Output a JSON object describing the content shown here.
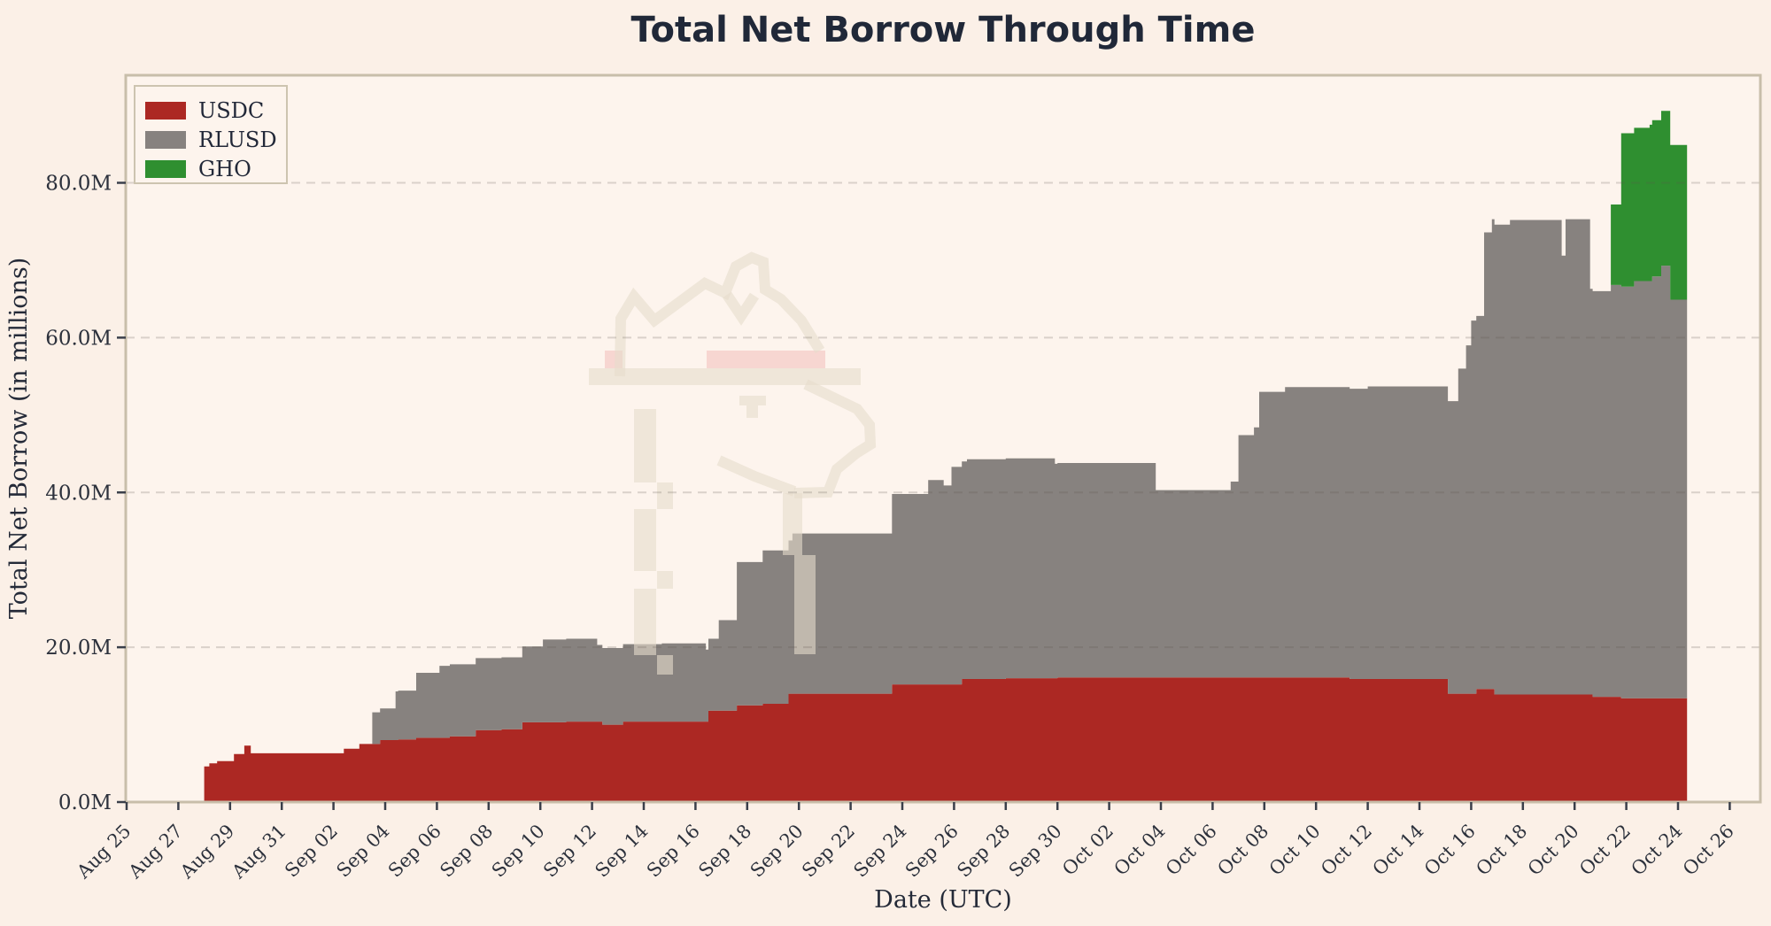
{
  "title": "Total Net Borrow Through Time",
  "xlabel": "Date (UTC)",
  "ylabel": "Total Net Borrow (in millions)",
  "legend": {
    "items": [
      {
        "label": "USDC",
        "color": "#ac2823"
      },
      {
        "label": "RLUSD",
        "color": "#87827f"
      },
      {
        "label": "GHO",
        "color": "#2f8f30"
      }
    ]
  },
  "colors": {
    "figure_bg": "#fbf0e7",
    "axes_bg": "#fdf4ed",
    "spine": "#c8beaa",
    "grid": "rgba(95,88,76,0.22)",
    "text": "#2c313c",
    "title": "#202838",
    "usdc": "#ac2823",
    "rlusd": "#87827f",
    "gho": "#2f8f30",
    "watermark": "rgba(230,220,203,0.6)",
    "watermark_pink": "rgba(246,208,203,0.85)"
  },
  "chart_data": {
    "type": "area",
    "stacked": true,
    "title": "Total Net Borrow Through Time",
    "xlabel": "Date (UTC)",
    "ylabel": "Total Net Borrow (in millions)",
    "x_unit_note": "t = days since Aug 25 00:00 UTC; values in millions",
    "xlim_t": [
      0,
      63.2
    ],
    "ylim": [
      0,
      93.9
    ],
    "grid": "horizontal-dashed",
    "legend_position": "upper-left",
    "end_t": 60.35,
    "x_tick_step_days": 2,
    "x_tick_labels": [
      "Aug 25",
      "Aug 27",
      "Aug 29",
      "Aug 31",
      "Sep 02",
      "Sep 04",
      "Sep 06",
      "Sep 08",
      "Sep 10",
      "Sep 12",
      "Sep 14",
      "Sep 16",
      "Sep 18",
      "Sep 20",
      "Sep 22",
      "Sep 24",
      "Sep 26",
      "Sep 28",
      "Sep 30",
      "Oct 02",
      "Oct 04",
      "Oct 06",
      "Oct 08",
      "Oct 10",
      "Oct 12",
      "Oct 14",
      "Oct 16",
      "Oct 18",
      "Oct 20",
      "Oct 22",
      "Oct 24",
      "Oct 26"
    ],
    "y_ticks": [
      {
        "value": 0,
        "label": "0.0M"
      },
      {
        "value": 20,
        "label": "20.0M"
      },
      {
        "value": 40,
        "label": "40.0M"
      },
      {
        "value": 60,
        "label": "60.0M"
      },
      {
        "value": 80,
        "label": "80.0M"
      }
    ],
    "series": [
      {
        "name": "USDC",
        "color": "#ac2823",
        "points": [
          [
            3.0,
            4.6
          ],
          [
            3.2,
            5.0
          ],
          [
            3.5,
            5.3
          ],
          [
            4.15,
            6.2
          ],
          [
            4.55,
            7.3
          ],
          [
            4.8,
            6.3
          ],
          [
            8.4,
            6.9
          ],
          [
            9.0,
            7.5
          ],
          [
            9.8,
            8.0
          ],
          [
            10.5,
            8.1
          ],
          [
            11.2,
            8.3
          ],
          [
            12.5,
            8.5
          ],
          [
            13.5,
            9.3
          ],
          [
            14.5,
            9.4
          ],
          [
            15.3,
            10.3
          ],
          [
            17.0,
            10.4
          ],
          [
            18.4,
            10.0
          ],
          [
            19.2,
            10.4
          ],
          [
            22.5,
            11.8
          ],
          [
            23.6,
            12.5
          ],
          [
            24.6,
            12.7
          ],
          [
            25.6,
            14.0
          ],
          [
            29.6,
            15.2
          ],
          [
            32.3,
            15.9
          ],
          [
            34.0,
            16.0
          ],
          [
            36.0,
            16.1
          ],
          [
            47.3,
            15.9
          ],
          [
            51.1,
            14.0
          ],
          [
            52.2,
            14.6
          ],
          [
            52.9,
            13.9
          ],
          [
            56.7,
            13.6
          ],
          [
            57.8,
            13.4
          ]
        ]
      },
      {
        "name": "RLUSD",
        "color": "#87827f",
        "points": [
          [
            9.5,
            4.1
          ],
          [
            10.4,
            6.3
          ],
          [
            11.2,
            8.4
          ],
          [
            12.1,
            9.3
          ],
          [
            15.3,
            9.8
          ],
          [
            16.1,
            10.7
          ],
          [
            18.2,
            9.9
          ],
          [
            19.2,
            10.0
          ],
          [
            20.7,
            10.1
          ],
          [
            22.4,
            9.3
          ],
          [
            22.9,
            11.7
          ],
          [
            23.6,
            18.5
          ],
          [
            24.6,
            19.8
          ],
          [
            25.75,
            20.7
          ],
          [
            29.6,
            24.6
          ],
          [
            31.0,
            26.4
          ],
          [
            31.6,
            25.7
          ],
          [
            31.9,
            28.1
          ],
          [
            32.5,
            28.4
          ],
          [
            35.9,
            27.7
          ],
          [
            39.8,
            24.2
          ],
          [
            42.7,
            25.3
          ],
          [
            43.0,
            31.3
          ],
          [
            43.6,
            32.3
          ],
          [
            43.8,
            36.9
          ],
          [
            44.8,
            37.5
          ],
          [
            48.0,
            37.8
          ],
          [
            51.5,
            42.0
          ],
          [
            51.8,
            45.0
          ],
          [
            52.0,
            48.2
          ],
          [
            52.5,
            59.0
          ],
          [
            52.8,
            60.7
          ],
          [
            53.5,
            61.3
          ],
          [
            55.5,
            56.7
          ],
          [
            55.65,
            61.4
          ],
          [
            56.6,
            52.4
          ],
          [
            57.4,
            53.2
          ],
          [
            58.3,
            53.9
          ],
          [
            59.0,
            54.5
          ],
          [
            59.35,
            55.9
          ],
          [
            59.7,
            51.5
          ]
        ]
      },
      {
        "name": "GHO",
        "color": "#2f8f30",
        "points": [
          [
            57.4,
            10.4
          ],
          [
            57.8,
            19.8
          ],
          [
            58.9,
            20.2
          ],
          [
            59.35,
            20.0
          ],
          [
            59.7,
            20.0
          ]
        ]
      }
    ]
  }
}
